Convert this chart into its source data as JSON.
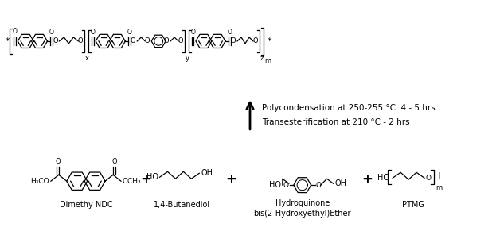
{
  "background_color": "#ffffff",
  "text_color": "#000000",
  "reaction_step1": "Transesterification at 210 °C - 2 hrs",
  "reaction_step2": "Polycondensation at 250-255 °C  4 - 5 hrs",
  "compound1_name": "Dimethy NDC",
  "compound2_name": "1,4-Butanediol",
  "compound3_name": "Hydroquinone\nbis(2-Hydroxyethyl)Ether",
  "compound4_name": "PTMG",
  "fig_width": 6.28,
  "fig_height": 2.91,
  "dpi": 100
}
